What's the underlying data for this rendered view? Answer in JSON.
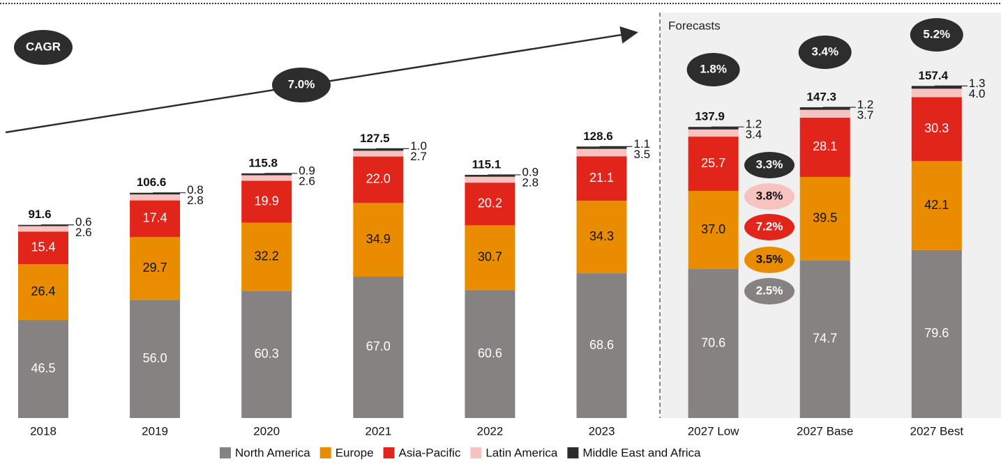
{
  "chart_data": {
    "type": "stacked_bar",
    "categories": [
      "2018",
      "2019",
      "2020",
      "2021",
      "2022",
      "2023",
      "2027 Low",
      "2027 Base",
      "2027 Best"
    ],
    "series": [
      {
        "name": "North America",
        "color": "#858281",
        "values": [
          46.5,
          56.0,
          60.3,
          67.0,
          60.6,
          68.6,
          70.6,
          74.7,
          79.6
        ],
        "value_labels": [
          "46.5",
          "56.0",
          "60.3",
          "67.0",
          "60.6",
          "68.6",
          "70.6",
          "74.7",
          "79.6"
        ]
      },
      {
        "name": "Europe",
        "color": "#ea8c00",
        "values": [
          26.4,
          29.7,
          32.2,
          34.9,
          30.7,
          34.3,
          37.0,
          39.5,
          42.1
        ],
        "value_labels": [
          "26.4",
          "29.7",
          "32.2",
          "34.9",
          "30.7",
          "34.3",
          "37.0",
          "39.5",
          "42.1"
        ]
      },
      {
        "name": "Asia-Pacific",
        "color": "#e1251b",
        "values": [
          15.4,
          17.4,
          19.9,
          22.0,
          20.2,
          21.1,
          25.7,
          28.1,
          30.3
        ],
        "value_labels": [
          "15.4",
          "17.4",
          "19.9",
          "22.0",
          "20.2",
          "21.1",
          "25.7",
          "28.1",
          "30.3"
        ]
      },
      {
        "name": "Latin America",
        "color": "#f7c3c0",
        "values": [
          2.6,
          2.8,
          2.6,
          2.7,
          2.8,
          3.5,
          3.4,
          3.7,
          4.0
        ],
        "value_labels": [
          "2.6",
          "2.8",
          "2.6",
          "2.7",
          "2.8",
          "3.5",
          "3.4",
          "3.7",
          "4.0"
        ]
      },
      {
        "name": "Middle East and Africa",
        "color": "#2d2d2d",
        "values": [
          0.6,
          0.8,
          0.9,
          1.0,
          0.9,
          1.1,
          1.2,
          1.2,
          1.3
        ],
        "value_labels": [
          "0.6",
          "0.8",
          "0.9",
          "1.0",
          "0.9",
          "1.1",
          "1.2",
          "1.2",
          "1.3"
        ]
      }
    ],
    "totals": [
      91.6,
      106.6,
      115.8,
      127.5,
      115.1,
      128.6,
      137.9,
      147.3,
      157.4
    ],
    "cagr_label": "CAGR",
    "historical_cagr": "7.0%",
    "forecast_label": "Forecasts",
    "forecast_cagrs": [
      "1.8%",
      "3.4%",
      "5.2%"
    ],
    "region_cagrs": [
      "3.3%",
      "3.8%",
      "7.2%",
      "3.5%",
      "2.5%"
    ]
  }
}
